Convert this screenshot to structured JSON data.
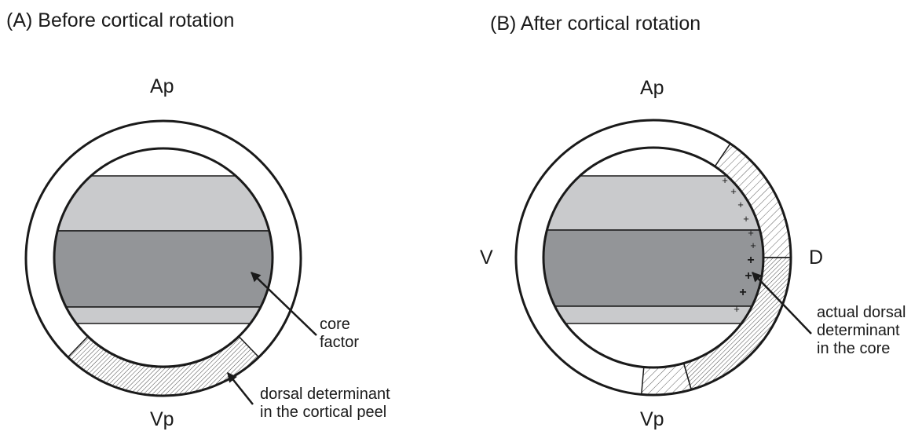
{
  "panels": [
    {
      "title": "(A)  Before cortical rotation",
      "labels": {
        "top": "Ap",
        "bottom": "Vp"
      },
      "annotations": [
        {
          "lines": [
            "core",
            "factor"
          ]
        },
        {
          "lines": [
            "dorsal determinant",
            "in the cortical peel"
          ]
        }
      ]
    },
    {
      "title": "(B)  After cortical rotation",
      "labels": {
        "top": "Ap",
        "bottom": "Vp",
        "left": "V",
        "right": "D"
      },
      "annotations": [
        {
          "lines": [
            "actual dorsal",
            "determinant",
            "in the core"
          ]
        }
      ],
      "plus_marker": "+"
    }
  ],
  "colors": {
    "light_band": "#c9cacc",
    "dark_band": "#939598",
    "outline": "#1a1a1a"
  }
}
